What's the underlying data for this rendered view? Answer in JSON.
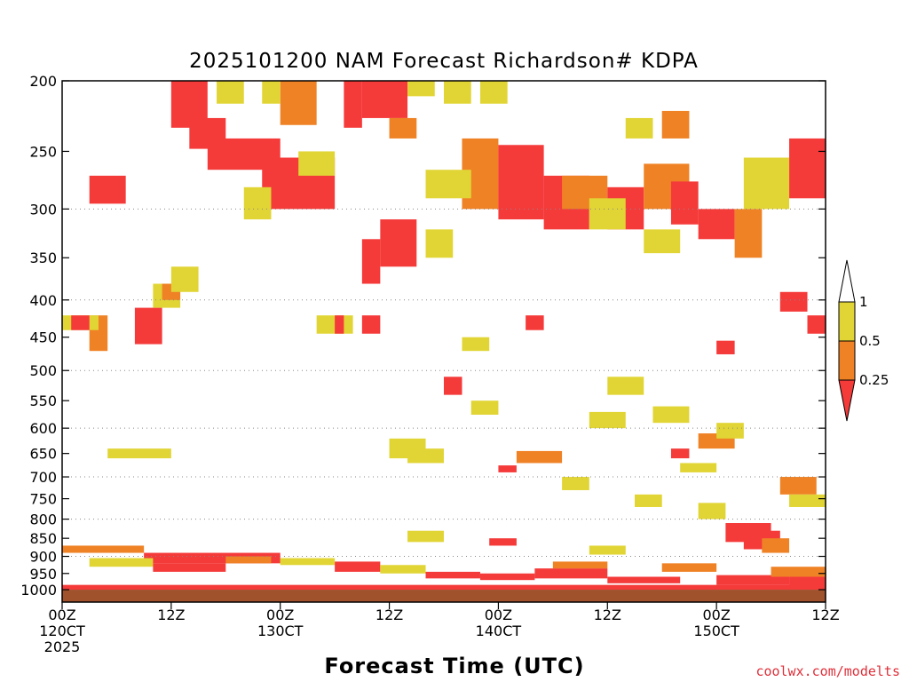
{
  "chart_data": {
    "type": "heatmap",
    "title": "2025101200 NAM Forecast Richardson# KDPA",
    "xlabel": "Forecast Time (UTC)",
    "ylabel": "",
    "credit": "coolwx.com/modelts",
    "x_unit": "forecast hour",
    "xlim": [
      0,
      84
    ],
    "ylim_hpa": [
      200,
      1040
    ],
    "y_scale": "log-pressure (inverted)",
    "y_ticks": [
      200,
      250,
      300,
      350,
      400,
      450,
      500,
      550,
      600,
      650,
      700,
      750,
      800,
      850,
      900,
      950,
      1000
    ],
    "grid_levels": [
      300,
      400,
      500,
      600,
      700,
      800,
      900
    ],
    "x_ticks": [
      {
        "hour": 0,
        "label": "00Z",
        "sub1": "120CT",
        "sub2": "2025"
      },
      {
        "hour": 12,
        "label": "12Z",
        "sub1": "",
        "sub2": ""
      },
      {
        "hour": 24,
        "label": "00Z",
        "sub1": "130CT",
        "sub2": ""
      },
      {
        "hour": 36,
        "label": "12Z",
        "sub1": "",
        "sub2": ""
      },
      {
        "hour": 48,
        "label": "00Z",
        "sub1": "140CT",
        "sub2": ""
      },
      {
        "hour": 60,
        "label": "12Z",
        "sub1": "",
        "sub2": ""
      },
      {
        "hour": 72,
        "label": "00Z",
        "sub1": "150CT",
        "sub2": ""
      },
      {
        "hour": 84,
        "label": "12Z",
        "sub1": "",
        "sub2": ""
      }
    ],
    "surface_color": "#a0522d",
    "surface_top_hpa": 1000,
    "colors": {
      "lt025": "#f53a3a",
      "r025_05": "#ef8225",
      "r05_1": "#e1d535",
      "ge1": "#ffffff"
    },
    "colorbar": {
      "labels": [
        "1",
        "0.5",
        "0.25"
      ],
      "bins": [
        {
          "range": "<0.25",
          "color": "#f53a3a"
        },
        {
          "range": "0.25-0.5",
          "color": "#ef8225"
        },
        {
          "range": "0.5-1",
          "color": "#e1d535"
        },
        {
          "range": ">1",
          "color": "#ffffff"
        }
      ]
    },
    "cells": [
      {
        "h0": 12,
        "h1": 16,
        "p0": 200,
        "p1": 232,
        "c": "r"
      },
      {
        "h0": 14,
        "h1": 18,
        "p0": 225,
        "p1": 248,
        "c": "r"
      },
      {
        "h0": 16,
        "h1": 24,
        "p0": 240,
        "p1": 265,
        "c": "r"
      },
      {
        "h0": 22,
        "h1": 30,
        "p0": 255,
        "p1": 300,
        "c": "r"
      },
      {
        "h0": 31,
        "h1": 33,
        "p0": 200,
        "p1": 232,
        "c": "r"
      },
      {
        "h0": 33,
        "h1": 38,
        "p0": 200,
        "p1": 225,
        "c": "r"
      },
      {
        "h0": 36,
        "h1": 39,
        "p0": 225,
        "p1": 240,
        "c": "o"
      },
      {
        "h0": 38,
        "h1": 41,
        "p0": 200,
        "p1": 210,
        "c": "y"
      },
      {
        "h0": 24,
        "h1": 28,
        "p0": 200,
        "p1": 230,
        "c": "o"
      },
      {
        "h0": 22,
        "h1": 24,
        "p0": 200,
        "p1": 215,
        "c": "y"
      },
      {
        "h0": 44,
        "h1": 48,
        "p0": 240,
        "p1": 300,
        "c": "o"
      },
      {
        "h0": 48,
        "h1": 53,
        "p0": 245,
        "p1": 310,
        "c": "r"
      },
      {
        "h0": 53,
        "h1": 58,
        "p0": 270,
        "p1": 320,
        "c": "r"
      },
      {
        "h0": 55,
        "h1": 60,
        "p0": 270,
        "p1": 300,
        "c": "o"
      },
      {
        "h0": 60,
        "h1": 64,
        "p0": 280,
        "p1": 320,
        "c": "r"
      },
      {
        "h0": 64,
        "h1": 69,
        "p0": 260,
        "p1": 300,
        "c": "o"
      },
      {
        "h0": 67,
        "h1": 70,
        "p0": 275,
        "p1": 315,
        "c": "r"
      },
      {
        "h0": 70,
        "h1": 74,
        "p0": 300,
        "p1": 330,
        "c": "r"
      },
      {
        "h0": 74,
        "h1": 77,
        "p0": 300,
        "p1": 350,
        "c": "o"
      },
      {
        "h0": 80,
        "h1": 84,
        "p0": 240,
        "p1": 290,
        "c": "r"
      },
      {
        "h0": 66,
        "h1": 69,
        "p0": 220,
        "p1": 240,
        "c": "o"
      },
      {
        "h0": 35,
        "h1": 39,
        "p0": 310,
        "p1": 360,
        "c": "r"
      },
      {
        "h0": 33,
        "h1": 35,
        "p0": 330,
        "p1": 380,
        "c": "r"
      },
      {
        "h0": 3,
        "h1": 7,
        "p0": 270,
        "p1": 295,
        "c": "r"
      },
      {
        "h0": 3,
        "h1": 5,
        "p0": 420,
        "p1": 470,
        "c": "o"
      },
      {
        "h0": 8,
        "h1": 11,
        "p0": 410,
        "p1": 460,
        "c": "r"
      },
      {
        "h0": 0,
        "h1": 4,
        "p0": 420,
        "p1": 440,
        "c": "y"
      },
      {
        "h0": 1,
        "h1": 3,
        "p0": 420,
        "p1": 440,
        "c": "r"
      },
      {
        "h0": 10,
        "h1": 13,
        "p0": 380,
        "p1": 410,
        "c": "y"
      },
      {
        "h0": 11,
        "h1": 13,
        "p0": 380,
        "p1": 400,
        "c": "o"
      },
      {
        "h0": 28,
        "h1": 32,
        "p0": 420,
        "p1": 445,
        "c": "y"
      },
      {
        "h0": 30,
        "h1": 31,
        "p0": 420,
        "p1": 445,
        "c": "r"
      },
      {
        "h0": 33,
        "h1": 35,
        "p0": 420,
        "p1": 445,
        "c": "r"
      },
      {
        "h0": 42,
        "h1": 44,
        "p0": 510,
        "p1": 540,
        "c": "r"
      },
      {
        "h0": 51,
        "h1": 53,
        "p0": 420,
        "p1": 440,
        "c": "r"
      },
      {
        "h0": 72,
        "h1": 74,
        "p0": 455,
        "p1": 475,
        "c": "r"
      },
      {
        "h0": 79,
        "h1": 82,
        "p0": 390,
        "p1": 415,
        "c": "r"
      },
      {
        "h0": 82,
        "h1": 84,
        "p0": 420,
        "p1": 445,
        "c": "r"
      },
      {
        "h0": 5,
        "h1": 12,
        "p0": 640,
        "p1": 660,
        "c": "y"
      },
      {
        "h0": 36,
        "h1": 40,
        "p0": 620,
        "p1": 660,
        "c": "y"
      },
      {
        "h0": 45,
        "h1": 48,
        "p0": 550,
        "p1": 575,
        "c": "y"
      },
      {
        "h0": 50,
        "h1": 55,
        "p0": 645,
        "p1": 670,
        "c": "o"
      },
      {
        "h0": 48,
        "h1": 50,
        "p0": 675,
        "p1": 690,
        "c": "r"
      },
      {
        "h0": 70,
        "h1": 74,
        "p0": 610,
        "p1": 640,
        "c": "o"
      },
      {
        "h0": 68,
        "h1": 72,
        "p0": 670,
        "p1": 690,
        "c": "y"
      },
      {
        "h0": 67,
        "h1": 69,
        "p0": 640,
        "p1": 660,
        "c": "r"
      },
      {
        "h0": 79,
        "h1": 83,
        "p0": 700,
        "p1": 740,
        "c": "o"
      },
      {
        "h0": 73,
        "h1": 78,
        "p0": 810,
        "p1": 860,
        "c": "r"
      },
      {
        "h0": 75,
        "h1": 79,
        "p0": 830,
        "p1": 880,
        "c": "r"
      },
      {
        "h0": 77,
        "h1": 80,
        "p0": 850,
        "p1": 890,
        "c": "o"
      },
      {
        "h0": 0,
        "h1": 9,
        "p0": 870,
        "p1": 890,
        "c": "o"
      },
      {
        "h0": 9,
        "h1": 24,
        "p0": 890,
        "p1": 920,
        "c": "r"
      },
      {
        "h0": 3,
        "h1": 10,
        "p0": 905,
        "p1": 930,
        "c": "y"
      },
      {
        "h0": 10,
        "h1": 18,
        "p0": 920,
        "p1": 945,
        "c": "r"
      },
      {
        "h0": 18,
        "h1": 23,
        "p0": 900,
        "p1": 920,
        "c": "o"
      },
      {
        "h0": 24,
        "h1": 30,
        "p0": 905,
        "p1": 925,
        "c": "y"
      },
      {
        "h0": 30,
        "h1": 35,
        "p0": 915,
        "p1": 945,
        "c": "r"
      },
      {
        "h0": 35,
        "h1": 40,
        "p0": 925,
        "p1": 950,
        "c": "y"
      },
      {
        "h0": 40,
        "h1": 46,
        "p0": 945,
        "p1": 965,
        "c": "r"
      },
      {
        "h0": 46,
        "h1": 52,
        "p0": 950,
        "p1": 970,
        "c": "r"
      },
      {
        "h0": 52,
        "h1": 60,
        "p0": 935,
        "p1": 965,
        "c": "r"
      },
      {
        "h0": 54,
        "h1": 60,
        "p0": 915,
        "p1": 935,
        "c": "o"
      },
      {
        "h0": 60,
        "h1": 68,
        "p0": 960,
        "p1": 980,
        "c": "r"
      },
      {
        "h0": 66,
        "h1": 72,
        "p0": 920,
        "p1": 945,
        "c": "o"
      },
      {
        "h0": 72,
        "h1": 80,
        "p0": 955,
        "p1": 985,
        "c": "r"
      },
      {
        "h0": 78,
        "h1": 84,
        "p0": 930,
        "p1": 960,
        "c": "o"
      },
      {
        "h0": 80,
        "h1": 84,
        "p0": 960,
        "p1": 990,
        "c": "r"
      },
      {
        "h0": 0,
        "h1": 84,
        "p0": 985,
        "p1": 1000,
        "c": "r"
      },
      {
        "h0": 17,
        "h1": 20,
        "p0": 200,
        "p1": 215,
        "c": "y"
      },
      {
        "h0": 42,
        "h1": 45,
        "p0": 200,
        "p1": 215,
        "c": "y"
      },
      {
        "h0": 46,
        "h1": 49,
        "p0": 200,
        "p1": 215,
        "c": "y"
      },
      {
        "h0": 62,
        "h1": 65,
        "p0": 225,
        "p1": 240,
        "c": "y"
      },
      {
        "h0": 26,
        "h1": 30,
        "p0": 250,
        "p1": 270,
        "c": "y"
      },
      {
        "h0": 40,
        "h1": 45,
        "p0": 265,
        "p1": 290,
        "c": "y"
      },
      {
        "h0": 58,
        "h1": 62,
        "p0": 290,
        "p1": 320,
        "c": "y"
      },
      {
        "h0": 64,
        "h1": 68,
        "p0": 320,
        "p1": 345,
        "c": "y"
      },
      {
        "h0": 75,
        "h1": 80,
        "p0": 255,
        "p1": 300,
        "c": "y"
      },
      {
        "h0": 12,
        "h1": 15,
        "p0": 360,
        "p1": 390,
        "c": "y"
      },
      {
        "h0": 20,
        "h1": 23,
        "p0": 280,
        "p1": 310,
        "c": "y"
      },
      {
        "h0": 40,
        "h1": 43,
        "p0": 320,
        "p1": 350,
        "c": "y"
      },
      {
        "h0": 44,
        "h1": 47,
        "p0": 450,
        "p1": 470,
        "c": "y"
      },
      {
        "h0": 60,
        "h1": 64,
        "p0": 510,
        "p1": 540,
        "c": "y"
      },
      {
        "h0": 65,
        "h1": 69,
        "p0": 560,
        "p1": 590,
        "c": "y"
      },
      {
        "h0": 72,
        "h1": 75,
        "p0": 590,
        "p1": 620,
        "c": "y"
      },
      {
        "h0": 58,
        "h1": 62,
        "p0": 570,
        "p1": 600,
        "c": "y"
      },
      {
        "h0": 38,
        "h1": 42,
        "p0": 640,
        "p1": 670,
        "c": "y"
      },
      {
        "h0": 55,
        "h1": 58,
        "p0": 700,
        "p1": 730,
        "c": "y"
      },
      {
        "h0": 63,
        "h1": 66,
        "p0": 740,
        "p1": 770,
        "c": "y"
      },
      {
        "h0": 70,
        "h1": 73,
        "p0": 760,
        "p1": 800,
        "c": "y"
      },
      {
        "h0": 80,
        "h1": 84,
        "p0": 740,
        "p1": 770,
        "c": "y"
      },
      {
        "h0": 38,
        "h1": 42,
        "p0": 830,
        "p1": 860,
        "c": "y"
      },
      {
        "h0": 47,
        "h1": 50,
        "p0": 850,
        "p1": 870,
        "c": "r"
      },
      {
        "h0": 58,
        "h1": 62,
        "p0": 870,
        "p1": 895,
        "c": "y"
      }
    ]
  }
}
